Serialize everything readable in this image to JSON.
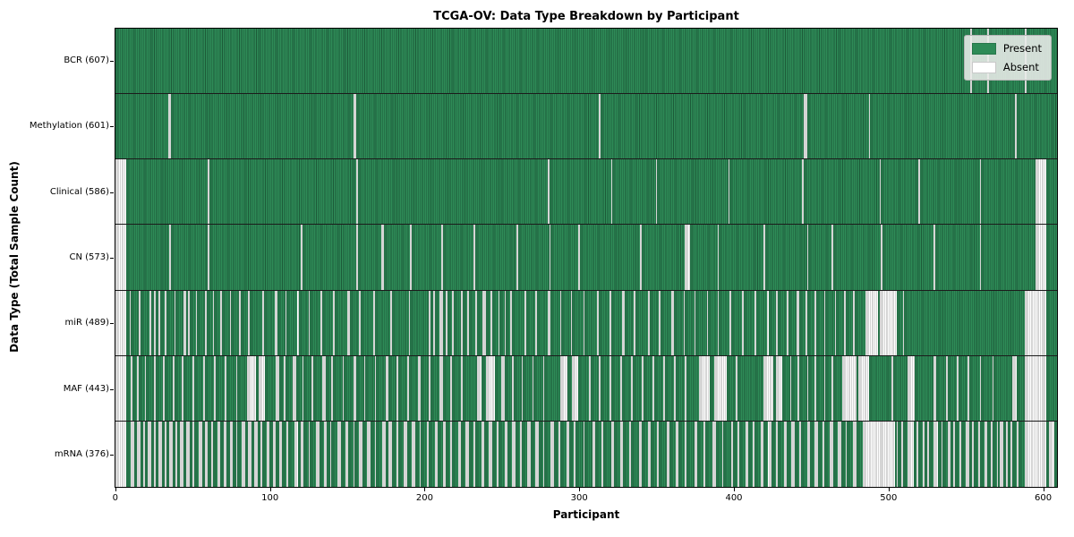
{
  "figure": {
    "title": "TCGA-OV: Data Type Breakdown by Participant",
    "xlabel": "Participant",
    "ylabel": "Data Type (Total Sample Count)"
  },
  "legend": {
    "present_label": "Present",
    "absent_label": "Absent"
  },
  "colors": {
    "present": "#2e8b57",
    "present_edge": "#1c5a38",
    "absent": "#ffffff",
    "absent_edge": "#ababab",
    "legend_bg": "#eaece9"
  },
  "chart_data": {
    "type": "heatmap",
    "title": "TCGA-OV: Data Type Breakdown by Participant",
    "xlabel": "Participant",
    "ylabel": "Data Type (Total Sample Count)",
    "legend": [
      "Present",
      "Absent"
    ],
    "legend_position": "upper right",
    "grid": false,
    "xlim": [
      0,
      610
    ],
    "x_ticks": [
      0,
      100,
      200,
      300,
      400,
      500,
      600
    ],
    "n_participants": 610,
    "note": "Each row shows per-participant presence (green) or absence (white) of a data type; absent_runs are [start_index, run_length] pairs.",
    "rows": [
      {
        "name": "BCR",
        "label": "BCR (607)",
        "total": 607,
        "absent_runs": [
          [
            554,
            1
          ],
          [
            565,
            1
          ],
          [
            589,
            1
          ]
        ]
      },
      {
        "name": "Methylation",
        "label": "Methylation (601)",
        "total": 601,
        "absent_runs": [
          [
            34,
            2
          ],
          [
            154,
            2
          ],
          [
            313,
            1
          ],
          [
            446,
            2
          ],
          [
            488,
            1
          ],
          [
            583,
            1
          ]
        ]
      },
      {
        "name": "Clinical",
        "label": "Clinical (586)",
        "total": 586,
        "absent_runs": [
          [
            0,
            7
          ],
          [
            60,
            1
          ],
          [
            156,
            1
          ],
          [
            280,
            1
          ],
          [
            321,
            1
          ],
          [
            350,
            1
          ],
          [
            397,
            1
          ],
          [
            445,
            1
          ],
          [
            495,
            1
          ],
          [
            520,
            1
          ],
          [
            560,
            1
          ],
          [
            596,
            7
          ]
        ]
      },
      {
        "name": "CN",
        "label": "CN (573)",
        "total": 573,
        "absent_runs": [
          [
            0,
            7
          ],
          [
            35,
            1
          ],
          [
            60,
            1
          ],
          [
            120,
            1
          ],
          [
            156,
            1
          ],
          [
            172,
            2
          ],
          [
            191,
            1
          ],
          [
            211,
            1
          ],
          [
            232,
            1
          ],
          [
            260,
            1
          ],
          [
            281,
            1
          ],
          [
            300,
            1
          ],
          [
            340,
            1
          ],
          [
            369,
            3
          ],
          [
            390,
            1
          ],
          [
            420,
            1
          ],
          [
            448,
            1
          ],
          [
            464,
            1
          ],
          [
            496,
            1
          ],
          [
            530,
            1
          ],
          [
            560,
            1
          ],
          [
            596,
            7
          ]
        ]
      },
      {
        "name": "miR",
        "label": "miR (489)",
        "total": 489,
        "absent_runs": [
          [
            0,
            7
          ],
          [
            9,
            1
          ],
          [
            15,
            1
          ],
          [
            22,
            1
          ],
          [
            25,
            1
          ],
          [
            28,
            1
          ],
          [
            32,
            1
          ],
          [
            38,
            1
          ],
          [
            44,
            2
          ],
          [
            47,
            1
          ],
          [
            52,
            1
          ],
          [
            58,
            1
          ],
          [
            63,
            1
          ],
          [
            68,
            1
          ],
          [
            74,
            1
          ],
          [
            80,
            1
          ],
          [
            86,
            1
          ],
          [
            95,
            1
          ],
          [
            103,
            2
          ],
          [
            110,
            1
          ],
          [
            118,
            1
          ],
          [
            125,
            1
          ],
          [
            133,
            1
          ],
          [
            141,
            1
          ],
          [
            150,
            2
          ],
          [
            158,
            1
          ],
          [
            167,
            1
          ],
          [
            178,
            1
          ],
          [
            190,
            1
          ],
          [
            203,
            1
          ],
          [
            206,
            1
          ],
          [
            210,
            2
          ],
          [
            214,
            1
          ],
          [
            218,
            1
          ],
          [
            224,
            1
          ],
          [
            228,
            1
          ],
          [
            233,
            1
          ],
          [
            238,
            2
          ],
          [
            243,
            1
          ],
          [
            248,
            1
          ],
          [
            252,
            1
          ],
          [
            256,
            1
          ],
          [
            265,
            1
          ],
          [
            272,
            1
          ],
          [
            280,
            2
          ],
          [
            288,
            1
          ],
          [
            295,
            1
          ],
          [
            303,
            1
          ],
          [
            312,
            1
          ],
          [
            320,
            1
          ],
          [
            328,
            2
          ],
          [
            336,
            1
          ],
          [
            345,
            1
          ],
          [
            352,
            1
          ],
          [
            360,
            2
          ],
          [
            368,
            1
          ],
          [
            375,
            1
          ],
          [
            383,
            1
          ],
          [
            390,
            1
          ],
          [
            398,
            1
          ],
          [
            406,
            1
          ],
          [
            414,
            1
          ],
          [
            422,
            1
          ],
          [
            428,
            1
          ],
          [
            435,
            1
          ],
          [
            441,
            2
          ],
          [
            447,
            1
          ],
          [
            453,
            1
          ],
          [
            459,
            1
          ],
          [
            466,
            1
          ],
          [
            472,
            1
          ],
          [
            478,
            1
          ],
          [
            486,
            8
          ],
          [
            495,
            11
          ],
          [
            510,
            1
          ],
          [
            589,
            14
          ]
        ]
      },
      {
        "name": "MAF",
        "label": "MAF (443)",
        "total": 443,
        "absent_runs": [
          [
            0,
            7
          ],
          [
            10,
            1
          ],
          [
            14,
            1
          ],
          [
            19,
            1
          ],
          [
            25,
            1
          ],
          [
            31,
            1
          ],
          [
            37,
            1
          ],
          [
            43,
            1
          ],
          [
            50,
            1
          ],
          [
            57,
            1
          ],
          [
            64,
            1
          ],
          [
            71,
            1
          ],
          [
            78,
            1
          ],
          [
            85,
            6
          ],
          [
            93,
            4
          ],
          [
            104,
            2
          ],
          [
            109,
            1
          ],
          [
            115,
            2
          ],
          [
            121,
            1
          ],
          [
            127,
            1
          ],
          [
            134,
            2
          ],
          [
            140,
            1
          ],
          [
            147,
            1
          ],
          [
            154,
            2
          ],
          [
            161,
            1
          ],
          [
            168,
            1
          ],
          [
            175,
            2
          ],
          [
            182,
            1
          ],
          [
            189,
            1
          ],
          [
            196,
            2
          ],
          [
            203,
            1
          ],
          [
            210,
            2
          ],
          [
            217,
            1
          ],
          [
            224,
            1
          ],
          [
            234,
            3
          ],
          [
            240,
            6
          ],
          [
            250,
            2
          ],
          [
            257,
            1
          ],
          [
            263,
            1
          ],
          [
            270,
            1
          ],
          [
            277,
            1
          ],
          [
            288,
            5
          ],
          [
            296,
            4
          ],
          [
            307,
            1
          ],
          [
            313,
            1
          ],
          [
            320,
            1
          ],
          [
            327,
            1
          ],
          [
            334,
            1
          ],
          [
            341,
            1
          ],
          [
            348,
            1
          ],
          [
            355,
            1
          ],
          [
            362,
            1
          ],
          [
            369,
            1
          ],
          [
            378,
            7
          ],
          [
            388,
            8
          ],
          [
            402,
            1
          ],
          [
            420,
            6
          ],
          [
            428,
            4
          ],
          [
            437,
            1
          ],
          [
            442,
            1
          ],
          [
            448,
            1
          ],
          [
            453,
            1
          ],
          [
            459,
            1
          ],
          [
            464,
            1
          ],
          [
            471,
            9
          ],
          [
            481,
            7
          ],
          [
            503,
            1
          ],
          [
            513,
            5
          ],
          [
            530,
            2
          ],
          [
            538,
            1
          ],
          [
            545,
            1
          ],
          [
            552,
            1
          ],
          [
            560,
            1
          ],
          [
            568,
            1
          ],
          [
            581,
            3
          ],
          [
            589,
            14
          ]
        ]
      },
      {
        "name": "mRNA",
        "label": "mRNA (376)",
        "total": 376,
        "absent_runs": [
          [
            0,
            7
          ],
          [
            10,
            2
          ],
          [
            14,
            2
          ],
          [
            18,
            1
          ],
          [
            21,
            2
          ],
          [
            25,
            1
          ],
          [
            28,
            2
          ],
          [
            32,
            1
          ],
          [
            35,
            2
          ],
          [
            39,
            1
          ],
          [
            42,
            2
          ],
          [
            46,
            2
          ],
          [
            50,
            1
          ],
          [
            54,
            2
          ],
          [
            58,
            2
          ],
          [
            62,
            1
          ],
          [
            66,
            2
          ],
          [
            70,
            2
          ],
          [
            74,
            2
          ],
          [
            78,
            1
          ],
          [
            82,
            2
          ],
          [
            86,
            2
          ],
          [
            90,
            2
          ],
          [
            94,
            1
          ],
          [
            98,
            2
          ],
          [
            102,
            2
          ],
          [
            106,
            2
          ],
          [
            111,
            1
          ],
          [
            116,
            2
          ],
          [
            120,
            2
          ],
          [
            125,
            1
          ],
          [
            130,
            2
          ],
          [
            135,
            2
          ],
          [
            139,
            1
          ],
          [
            144,
            2
          ],
          [
            149,
            2
          ],
          [
            154,
            1
          ],
          [
            158,
            2
          ],
          [
            163,
            2
          ],
          [
            168,
            1
          ],
          [
            173,
            2
          ],
          [
            177,
            2
          ],
          [
            182,
            1
          ],
          [
            187,
            2
          ],
          [
            192,
            2
          ],
          [
            197,
            1
          ],
          [
            202,
            1
          ],
          [
            207,
            2
          ],
          [
            212,
            2
          ],
          [
            217,
            1
          ],
          [
            222,
            2
          ],
          [
            227,
            2
          ],
          [
            232,
            1
          ],
          [
            237,
            2
          ],
          [
            242,
            2
          ],
          [
            247,
            1
          ],
          [
            252,
            2
          ],
          [
            257,
            2
          ],
          [
            262,
            1
          ],
          [
            267,
            2
          ],
          [
            272,
            2
          ],
          [
            277,
            1
          ],
          [
            282,
            2
          ],
          [
            287,
            1
          ],
          [
            292,
            2
          ],
          [
            297,
            1
          ],
          [
            303,
            1
          ],
          [
            309,
            2
          ],
          [
            315,
            1
          ],
          [
            321,
            2
          ],
          [
            327,
            2
          ],
          [
            333,
            1
          ],
          [
            339,
            2
          ],
          [
            345,
            2
          ],
          [
            351,
            1
          ],
          [
            357,
            2
          ],
          [
            363,
            2
          ],
          [
            369,
            1
          ],
          [
            375,
            2
          ],
          [
            381,
            1
          ],
          [
            387,
            2
          ],
          [
            393,
            1
          ],
          [
            399,
            1
          ],
          [
            403,
            1
          ],
          [
            408,
            2
          ],
          [
            413,
            1
          ],
          [
            418,
            2
          ],
          [
            423,
            2
          ],
          [
            428,
            1
          ],
          [
            433,
            2
          ],
          [
            438,
            2
          ],
          [
            443,
            1
          ],
          [
            448,
            2
          ],
          [
            453,
            2
          ],
          [
            458,
            1
          ],
          [
            463,
            2
          ],
          [
            468,
            2
          ],
          [
            473,
            1
          ],
          [
            478,
            2
          ],
          [
            484,
            21
          ],
          [
            506,
            1
          ],
          [
            509,
            1
          ],
          [
            513,
            4
          ],
          [
            519,
            1
          ],
          [
            523,
            1
          ],
          [
            526,
            1
          ],
          [
            530,
            3
          ],
          [
            535,
            1
          ],
          [
            539,
            2
          ],
          [
            543,
            1
          ],
          [
            547,
            1
          ],
          [
            551,
            2
          ],
          [
            555,
            1
          ],
          [
            559,
            1
          ],
          [
            563,
            2
          ],
          [
            567,
            1
          ],
          [
            571,
            1
          ],
          [
            573,
            2
          ],
          [
            577,
            1
          ],
          [
            580,
            1
          ],
          [
            584,
            1
          ],
          [
            589,
            14
          ],
          [
            605,
            3
          ]
        ]
      }
    ]
  }
}
